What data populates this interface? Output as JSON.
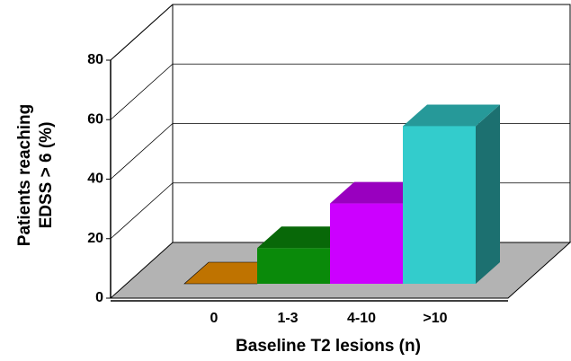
{
  "chart_data": {
    "type": "bar3d",
    "ylabel_lines": [
      "Patients reaching",
      "EDSS > 6 (%)"
    ],
    "xlabel": "Baseline T2 lesions (n)",
    "categories": [
      "0",
      "1-3",
      "4-10",
      ">10"
    ],
    "values": [
      0,
      12,
      27,
      53
    ],
    "colors": [
      "#ff9900",
      "#0a8a0a",
      "#cc00ff",
      "#33cccc"
    ],
    "ylim": [
      0,
      80
    ],
    "yticks": [
      0,
      20,
      40,
      60,
      80
    ],
    "grid": true
  }
}
